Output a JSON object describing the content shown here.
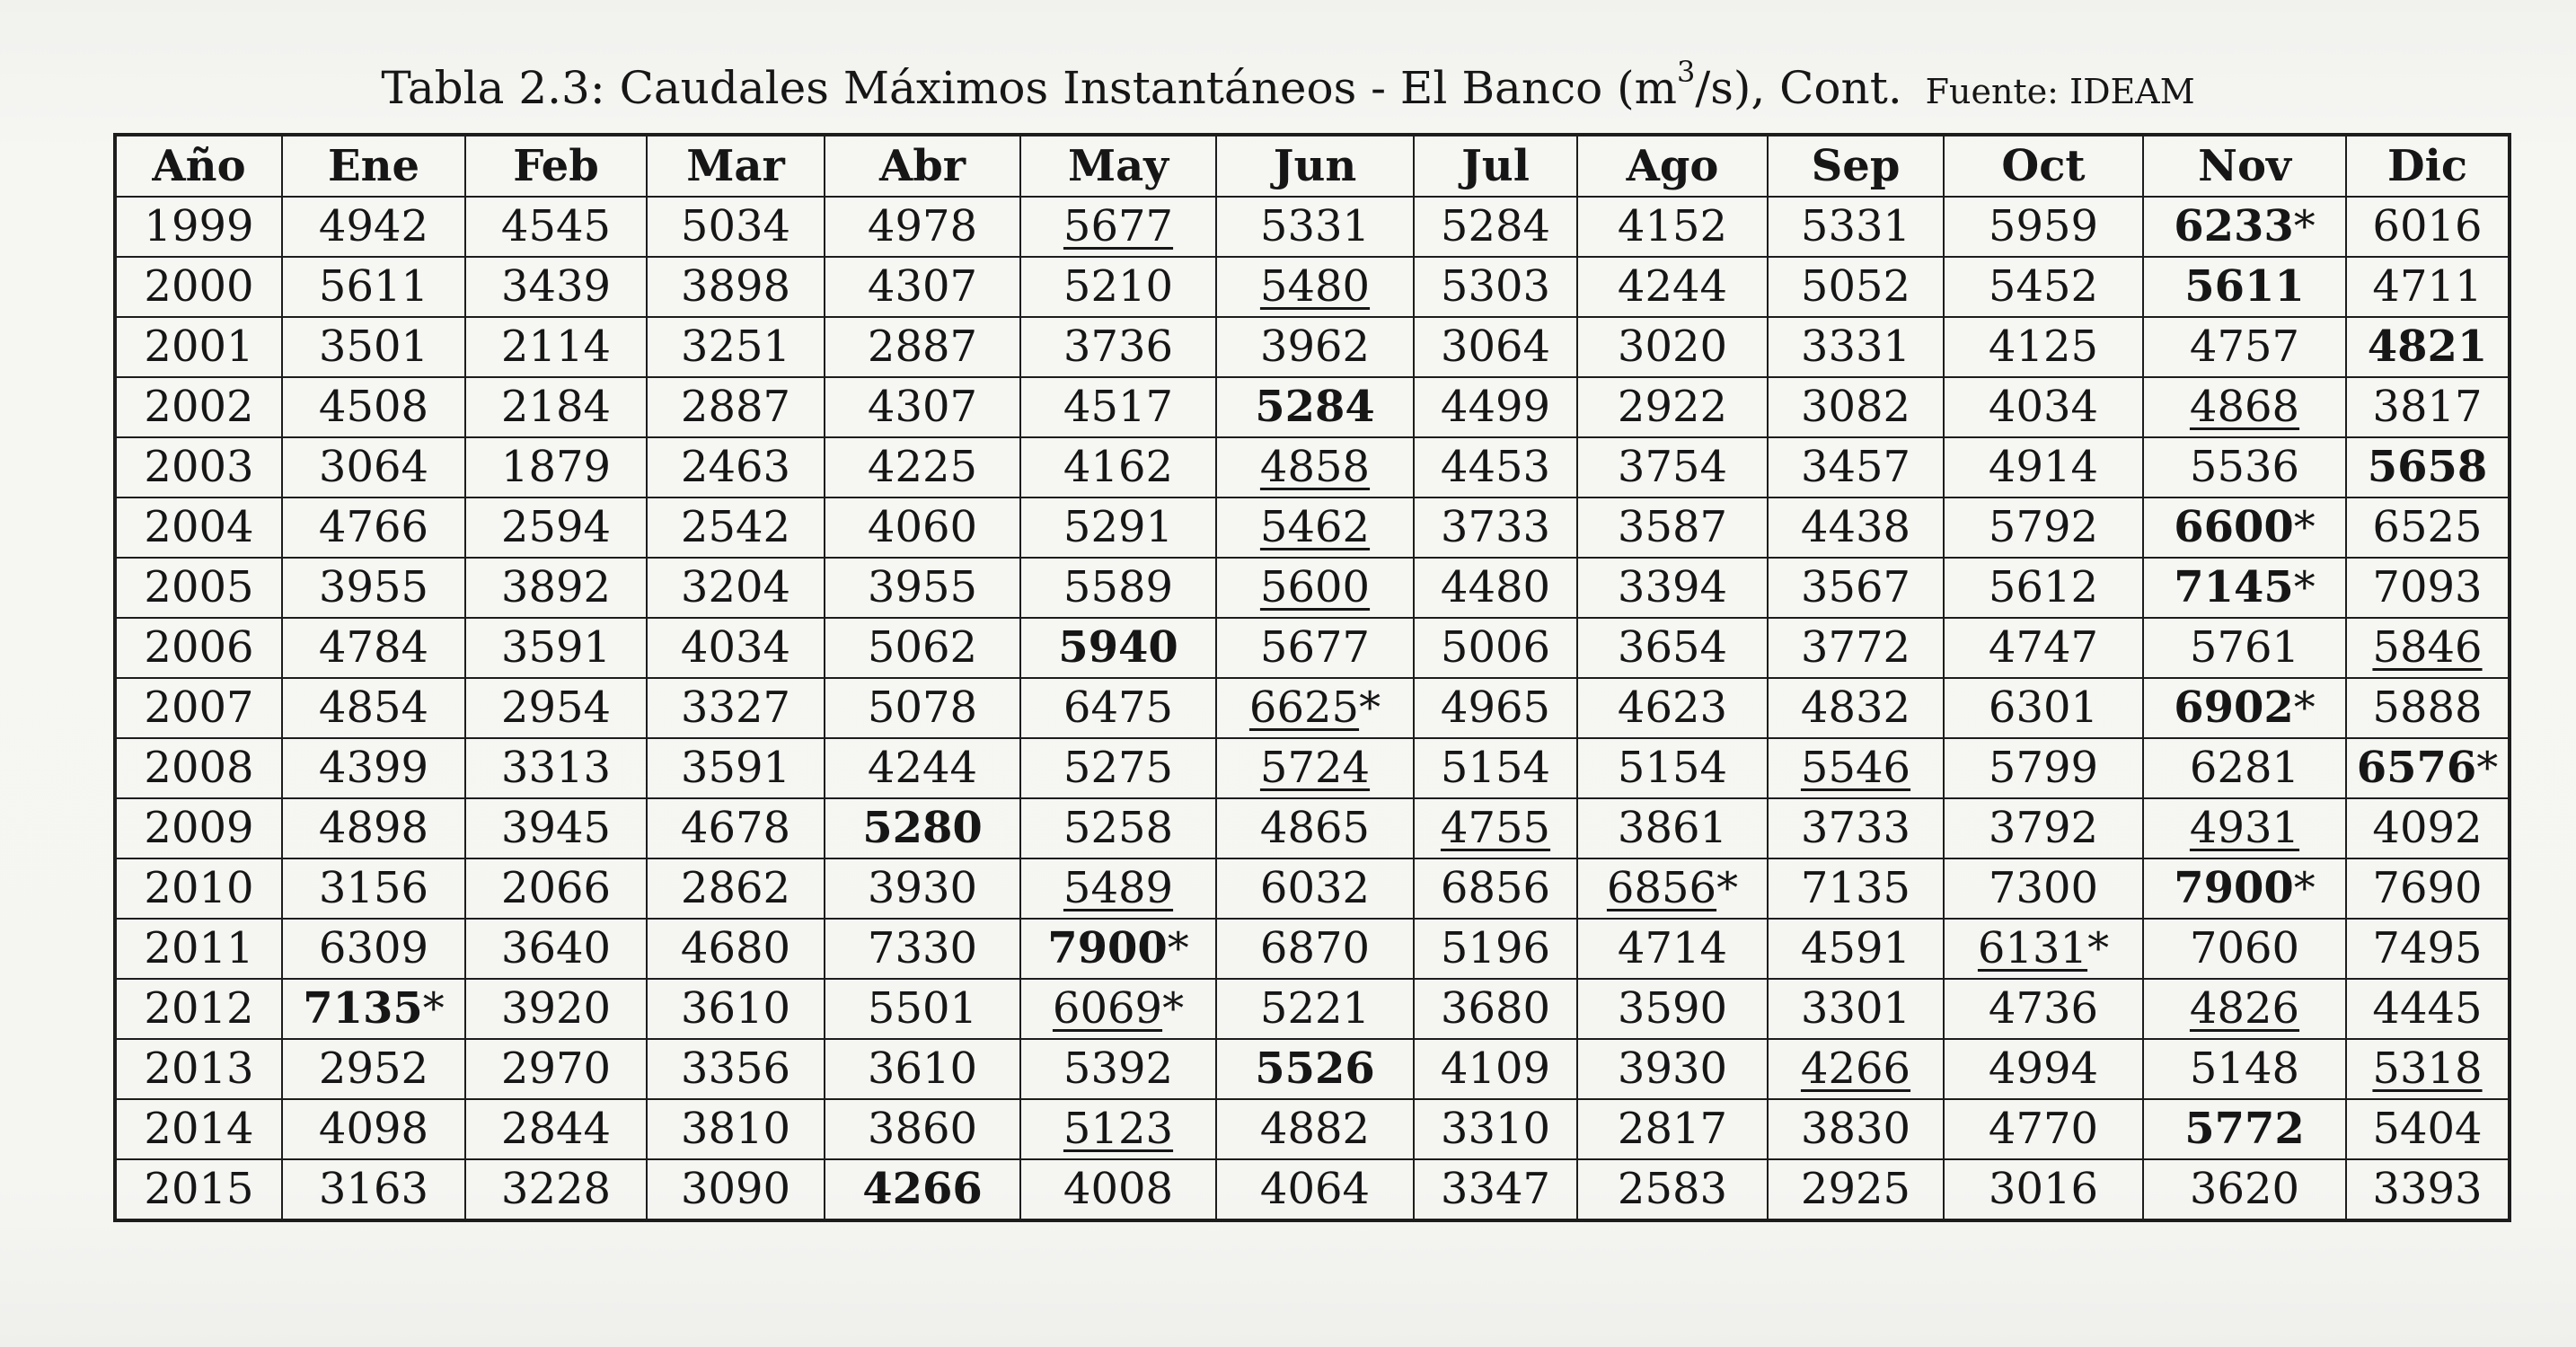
{
  "caption": {
    "prefix": "Tabla 2.3: Caudales Máximos Instantáneos - El Banco (m",
    "superscript": "3",
    "suffix": "/s), Cont.",
    "source": "Fuente: IDEAM"
  },
  "columns": [
    "Año",
    "Ene",
    "Feb",
    "Mar",
    "Abr",
    "May",
    "Jun",
    "Jul",
    "Ago",
    "Sep",
    "Oct",
    "Nov",
    "Dic"
  ],
  "rows": [
    {
      "cells": [
        {
          "t": "1999"
        },
        {
          "t": "4942"
        },
        {
          "t": "4545"
        },
        {
          "t": "5034"
        },
        {
          "t": "4978"
        },
        {
          "t": "5677",
          "u": true
        },
        {
          "t": "5331"
        },
        {
          "t": "5284"
        },
        {
          "t": "4152"
        },
        {
          "t": "5331"
        },
        {
          "t": "5959"
        },
        {
          "t": "6233",
          "b": true,
          "star": true
        },
        {
          "t": "6016"
        }
      ]
    },
    {
      "cells": [
        {
          "t": "2000"
        },
        {
          "t": "5611"
        },
        {
          "t": "3439"
        },
        {
          "t": "3898"
        },
        {
          "t": "4307"
        },
        {
          "t": "5210"
        },
        {
          "t": "5480",
          "u": true
        },
        {
          "t": "5303"
        },
        {
          "t": "4244"
        },
        {
          "t": "5052"
        },
        {
          "t": "5452"
        },
        {
          "t": "5611",
          "b": true
        },
        {
          "t": "4711"
        }
      ]
    },
    {
      "cells": [
        {
          "t": "2001"
        },
        {
          "t": "3501"
        },
        {
          "t": "2114"
        },
        {
          "t": "3251"
        },
        {
          "t": "2887"
        },
        {
          "t": "3736"
        },
        {
          "t": "3962"
        },
        {
          "t": "3064"
        },
        {
          "t": "3020"
        },
        {
          "t": "3331"
        },
        {
          "t": "4125"
        },
        {
          "t": "4757"
        },
        {
          "t": "4821",
          "b": true
        }
      ]
    },
    {
      "cells": [
        {
          "t": "2002"
        },
        {
          "t": "4508"
        },
        {
          "t": "2184"
        },
        {
          "t": "2887"
        },
        {
          "t": "4307"
        },
        {
          "t": "4517"
        },
        {
          "t": "5284",
          "b": true
        },
        {
          "t": "4499"
        },
        {
          "t": "2922"
        },
        {
          "t": "3082"
        },
        {
          "t": "4034"
        },
        {
          "t": "4868",
          "u": true
        },
        {
          "t": "3817"
        }
      ]
    },
    {
      "cells": [
        {
          "t": "2003"
        },
        {
          "t": "3064"
        },
        {
          "t": "1879"
        },
        {
          "t": "2463"
        },
        {
          "t": "4225"
        },
        {
          "t": "4162"
        },
        {
          "t": "4858",
          "u": true
        },
        {
          "t": "4453"
        },
        {
          "t": "3754"
        },
        {
          "t": "3457"
        },
        {
          "t": "4914"
        },
        {
          "t": "5536"
        },
        {
          "t": "5658",
          "b": true
        }
      ]
    },
    {
      "cells": [
        {
          "t": "2004"
        },
        {
          "t": "4766"
        },
        {
          "t": "2594"
        },
        {
          "t": "2542"
        },
        {
          "t": "4060"
        },
        {
          "t": "5291"
        },
        {
          "t": "5462",
          "u": true
        },
        {
          "t": "3733"
        },
        {
          "t": "3587"
        },
        {
          "t": "4438"
        },
        {
          "t": "5792"
        },
        {
          "t": "6600",
          "b": true,
          "star": true
        },
        {
          "t": "6525"
        }
      ]
    },
    {
      "cells": [
        {
          "t": "2005"
        },
        {
          "t": "3955"
        },
        {
          "t": "3892"
        },
        {
          "t": "3204"
        },
        {
          "t": "3955"
        },
        {
          "t": "5589"
        },
        {
          "t": "5600",
          "u": true
        },
        {
          "t": "4480"
        },
        {
          "t": "3394"
        },
        {
          "t": "3567"
        },
        {
          "t": "5612"
        },
        {
          "t": "7145",
          "b": true,
          "star": true
        },
        {
          "t": "7093"
        }
      ]
    },
    {
      "cells": [
        {
          "t": "2006"
        },
        {
          "t": "4784"
        },
        {
          "t": "3591"
        },
        {
          "t": "4034"
        },
        {
          "t": "5062"
        },
        {
          "t": "5940",
          "b": true
        },
        {
          "t": "5677"
        },
        {
          "t": "5006"
        },
        {
          "t": "3654"
        },
        {
          "t": "3772"
        },
        {
          "t": "4747"
        },
        {
          "t": "5761"
        },
        {
          "t": "5846",
          "u": true
        }
      ]
    },
    {
      "cells": [
        {
          "t": "2007"
        },
        {
          "t": "4854"
        },
        {
          "t": "2954"
        },
        {
          "t": "3327"
        },
        {
          "t": "5078"
        },
        {
          "t": "6475"
        },
        {
          "t": "6625",
          "u": true,
          "star": true
        },
        {
          "t": "4965"
        },
        {
          "t": "4623"
        },
        {
          "t": "4832"
        },
        {
          "t": "6301"
        },
        {
          "t": "6902",
          "b": true,
          "star": true
        },
        {
          "t": "5888"
        }
      ]
    },
    {
      "cells": [
        {
          "t": "2008"
        },
        {
          "t": "4399"
        },
        {
          "t": "3313"
        },
        {
          "t": "3591"
        },
        {
          "t": "4244"
        },
        {
          "t": "5275"
        },
        {
          "t": "5724",
          "u": true
        },
        {
          "t": "5154"
        },
        {
          "t": "5154"
        },
        {
          "t": "5546",
          "u": true
        },
        {
          "t": "5799"
        },
        {
          "t": "6281"
        },
        {
          "t": "6576",
          "b": true,
          "star": true
        }
      ]
    },
    {
      "cells": [
        {
          "t": "2009"
        },
        {
          "t": "4898"
        },
        {
          "t": "3945"
        },
        {
          "t": "4678"
        },
        {
          "t": "5280",
          "b": true
        },
        {
          "t": "5258"
        },
        {
          "t": "4865"
        },
        {
          "t": "4755",
          "u": true
        },
        {
          "t": "3861"
        },
        {
          "t": "3733"
        },
        {
          "t": "3792"
        },
        {
          "t": "4931",
          "u": true
        },
        {
          "t": "4092"
        }
      ]
    },
    {
      "cells": [
        {
          "t": "2010"
        },
        {
          "t": "3156"
        },
        {
          "t": "2066"
        },
        {
          "t": "2862"
        },
        {
          "t": "3930"
        },
        {
          "t": "5489",
          "u": true
        },
        {
          "t": "6032"
        },
        {
          "t": "6856"
        },
        {
          "t": "6856",
          "u": true,
          "star": true
        },
        {
          "t": "7135"
        },
        {
          "t": "7300"
        },
        {
          "t": "7900",
          "b": true,
          "star": true
        },
        {
          "t": "7690"
        }
      ]
    },
    {
      "cells": [
        {
          "t": "2011"
        },
        {
          "t": "6309"
        },
        {
          "t": "3640"
        },
        {
          "t": "4680"
        },
        {
          "t": "7330"
        },
        {
          "t": "7900",
          "b": true,
          "star": true
        },
        {
          "t": "6870"
        },
        {
          "t": "5196"
        },
        {
          "t": "4714"
        },
        {
          "t": "4591"
        },
        {
          "t": "6131",
          "u": true,
          "star": true
        },
        {
          "t": "7060"
        },
        {
          "t": "7495"
        }
      ]
    },
    {
      "cells": [
        {
          "t": "2012"
        },
        {
          "t": "7135",
          "b": true,
          "star": true
        },
        {
          "t": "3920"
        },
        {
          "t": "3610"
        },
        {
          "t": "5501"
        },
        {
          "t": "6069",
          "u": true,
          "star": true
        },
        {
          "t": "5221"
        },
        {
          "t": "3680"
        },
        {
          "t": "3590"
        },
        {
          "t": "3301"
        },
        {
          "t": "4736"
        },
        {
          "t": "4826",
          "u": true
        },
        {
          "t": "4445"
        }
      ]
    },
    {
      "cells": [
        {
          "t": "2013"
        },
        {
          "t": "2952"
        },
        {
          "t": "2970"
        },
        {
          "t": "3356"
        },
        {
          "t": "3610"
        },
        {
          "t": "5392"
        },
        {
          "t": "5526",
          "b": true
        },
        {
          "t": "4109"
        },
        {
          "t": "3930"
        },
        {
          "t": "4266",
          "u": true
        },
        {
          "t": "4994"
        },
        {
          "t": "5148"
        },
        {
          "t": "5318",
          "u": true
        }
      ]
    },
    {
      "cells": [
        {
          "t": "2014"
        },
        {
          "t": "4098"
        },
        {
          "t": "2844"
        },
        {
          "t": "3810"
        },
        {
          "t": "3860"
        },
        {
          "t": "5123",
          "u": true
        },
        {
          "t": "4882"
        },
        {
          "t": "3310"
        },
        {
          "t": "2817"
        },
        {
          "t": "3830"
        },
        {
          "t": "4770"
        },
        {
          "t": "5772",
          "b": true
        },
        {
          "t": "5404"
        }
      ]
    },
    {
      "cells": [
        {
          "t": "2015"
        },
        {
          "t": "3163"
        },
        {
          "t": "3228"
        },
        {
          "t": "3090"
        },
        {
          "t": "4266",
          "b": true
        },
        {
          "t": "4008"
        },
        {
          "t": "4064"
        },
        {
          "t": "3347"
        },
        {
          "t": "2583"
        },
        {
          "t": "2925"
        },
        {
          "t": "3016"
        },
        {
          "t": "3620"
        },
        {
          "t": "3393"
        }
      ]
    }
  ]
}
